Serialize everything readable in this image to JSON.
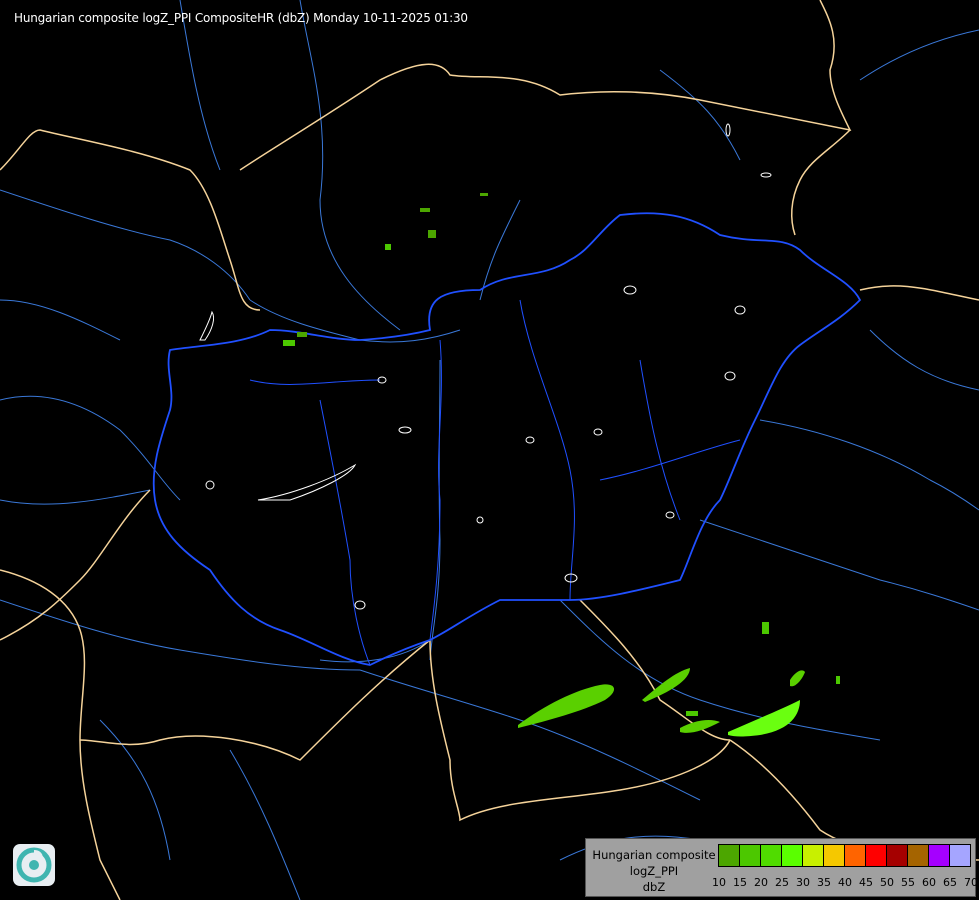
{
  "title": "Hungarian composite logZ_PPI CompositeHR (dbZ) Monday 10-11-2025 01:30",
  "legend": {
    "label_lines": [
      "Hungarian composite",
      "logZ_PPI",
      "dbZ"
    ],
    "ticks": [
      "10",
      "15",
      "20",
      "25",
      "30",
      "35",
      "40",
      "45",
      "50",
      "55",
      "60",
      "65",
      "70"
    ],
    "colors": [
      "#4ca600",
      "#4cc800",
      "#50dc00",
      "#5aff00",
      "#c8f000",
      "#f5c800",
      "#ff6400",
      "#ff0000",
      "#a50000",
      "#a56400",
      "#a500ff",
      "#a5a5ff"
    ]
  },
  "map_colors": {
    "background": "#000000",
    "country_borders": "#f5d39a",
    "hungary_border": "#2050ff",
    "rivers": "#3a78d8",
    "lakes": "#ffffff"
  },
  "logo": "radar-service-logo"
}
